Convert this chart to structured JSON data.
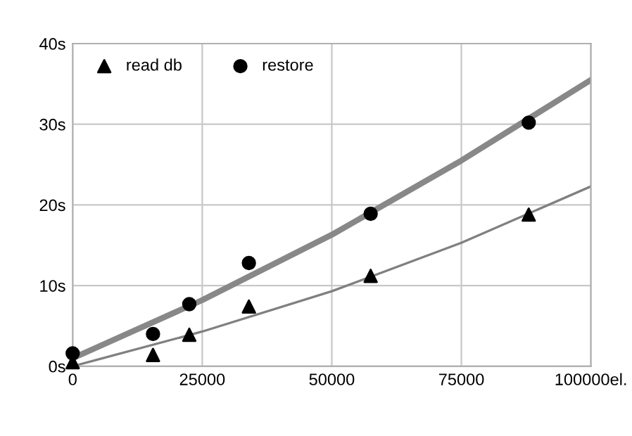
{
  "chart_data": {
    "type": "scatter",
    "x": [
      0,
      15500,
      22500,
      34000,
      57500,
      88000
    ],
    "series": [
      {
        "name": "read db",
        "color": "#000000",
        "marker": "triangle",
        "values": [
          0.5,
          1.4,
          3.9,
          7.4,
          11.2,
          18.8
        ]
      },
      {
        "name": "restore",
        "color": "#000000",
        "marker": "circle",
        "values": [
          1.6,
          4.0,
          7.7,
          12.8,
          18.9,
          30.2
        ]
      },
      {
        "type": "line",
        "color": "#888888",
        "x": [
          0,
          25000,
          50000,
          75000,
          100000
        ],
        "values": [
          1.0,
          8.2,
          16.3,
          25.5,
          35.5
        ]
      },
      {
        "type": "line",
        "color": "#808080",
        "x": [
          0,
          25000,
          50000,
          75000,
          100000
        ],
        "values": [
          0.0,
          4.3,
          9.3,
          15.3,
          22.3
        ]
      }
    ],
    "xlim": [
      0,
      100000
    ],
    "xticks": [
      0,
      25000,
      50000,
      75000,
      {
        "value": 100000,
        "label": "100000el."
      }
    ],
    "ylim": [
      0,
      40
    ],
    "yticks": [
      {
        "value": 0,
        "label": "0s"
      },
      {
        "value": 10,
        "label": "10s"
      },
      {
        "value": 20,
        "label": "20s"
      },
      {
        "value": 30,
        "label": "30s"
      },
      {
        "value": 40,
        "label": "40s"
      }
    ],
    "grid": true,
    "legend": "top left"
  }
}
